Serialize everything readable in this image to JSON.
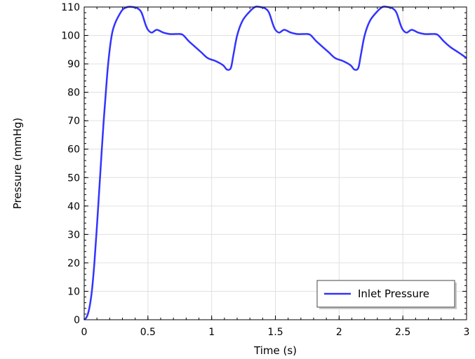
{
  "chart_data": {
    "type": "line",
    "xlabel": "Time (s)",
    "ylabel": "Pressure (mmHg)",
    "xlim": [
      0,
      3
    ],
    "ylim": [
      0,
      110
    ],
    "x_ticks": [
      0,
      0.5,
      1,
      1.5,
      2,
      2.5,
      3
    ],
    "x_tick_labels": [
      "0",
      "0.5",
      "1",
      "1.5",
      "2",
      "2.5",
      "3"
    ],
    "y_ticks": [
      0,
      10,
      20,
      30,
      40,
      50,
      60,
      70,
      80,
      90,
      100,
      110
    ],
    "y_tick_labels": [
      "0",
      "10",
      "20",
      "30",
      "40",
      "50",
      "60",
      "70",
      "80",
      "90",
      "100",
      "110"
    ],
    "grid": true,
    "legend": "bottom-right",
    "series": [
      {
        "name": "Inlet Pressure",
        "color": "#3333ff",
        "x": [
          0,
          0.02,
          0.04,
          0.06,
          0.08,
          0.1,
          0.12,
          0.15,
          0.18,
          0.2,
          0.22,
          0.24,
          0.26,
          0.3,
          0.34,
          0.38,
          0.42,
          0.45,
          0.48,
          0.5,
          0.53,
          0.57,
          0.62,
          0.67,
          0.72,
          0.77,
          0.82,
          0.87,
          0.92,
          0.97,
          1.03,
          1.09,
          1.12,
          1.15,
          1.17,
          1.2,
          1.24,
          1.29,
          1.34,
          1.38,
          1.42,
          1.45,
          1.48,
          1.5,
          1.53,
          1.57,
          1.62,
          1.67,
          1.72,
          1.77,
          1.82,
          1.87,
          1.92,
          1.97,
          2.03,
          2.09,
          2.12,
          2.15,
          2.17,
          2.2,
          2.24,
          2.29,
          2.34,
          2.38,
          2.42,
          2.45,
          2.48,
          2.5,
          2.53,
          2.57,
          2.62,
          2.67,
          2.72,
          2.77,
          2.82,
          2.87,
          2.92,
          2.97,
          3.0
        ],
        "y": [
          0,
          1,
          4,
          10,
          20,
          33,
          47,
          68,
          86,
          95,
          101,
          104,
          106,
          109,
          110,
          110,
          109.5,
          108,
          104,
          102,
          101,
          102,
          101,
          100.5,
          100.5,
          100.3,
          98,
          96,
          94,
          92,
          91,
          89.5,
          88,
          88.5,
          93,
          100,
          105,
          108,
          110,
          110,
          109.5,
          108,
          104,
          102,
          101,
          102,
          101,
          100.5,
          100.5,
          100.3,
          98,
          96,
          94,
          92,
          91,
          89.5,
          88,
          88.5,
          93,
          100,
          105,
          108,
          110,
          110,
          109.5,
          108,
          104,
          102,
          101,
          102,
          101,
          100.5,
          100.5,
          100.3,
          98,
          96,
          94.5,
          93,
          92
        ]
      }
    ]
  }
}
